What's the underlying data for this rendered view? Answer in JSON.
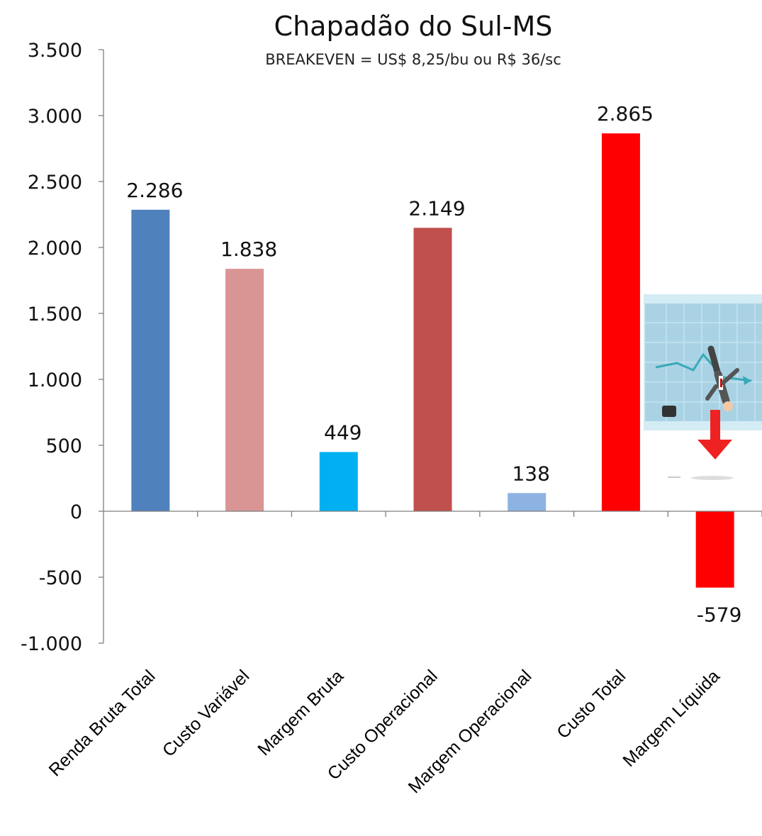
{
  "chart_data": {
    "type": "bar",
    "title": "Chapadão do Sul-MS",
    "subtitle": "BREAKEVEN = US$ 8,25/bu ou R$ 36/sc",
    "xlabel": "",
    "ylabel": "",
    "ylim": [
      -1000,
      3500
    ],
    "yticks": [
      -1000,
      -500,
      0,
      500,
      1000,
      1500,
      2000,
      2500,
      3000,
      3500
    ],
    "ytick_labels": [
      "-1.000",
      "-500",
      "0",
      "500",
      "1.000",
      "1.500",
      "2.000",
      "2.500",
      "3.000",
      "3.500"
    ],
    "categories": [
      "Renda Bruta Total",
      "Custo Variável",
      "Margem Bruta",
      "Custo Operacional",
      "Margem Operacional",
      "Custo Total",
      "Margem Líquida"
    ],
    "values": [
      2286,
      1838,
      449,
      2149,
      138,
      2865,
      -579
    ],
    "value_labels": [
      "2.286",
      "1.838",
      "449",
      "2.149",
      "138",
      "2.865",
      "-579"
    ],
    "colors": [
      "#4f81bd",
      "#d99594",
      "#00b0f0",
      "#c0504d",
      "#8db3e2",
      "#ff0000",
      "#ff0000"
    ],
    "grid": false,
    "legend": "none",
    "decoration": "falling-businessman-illustration"
  }
}
